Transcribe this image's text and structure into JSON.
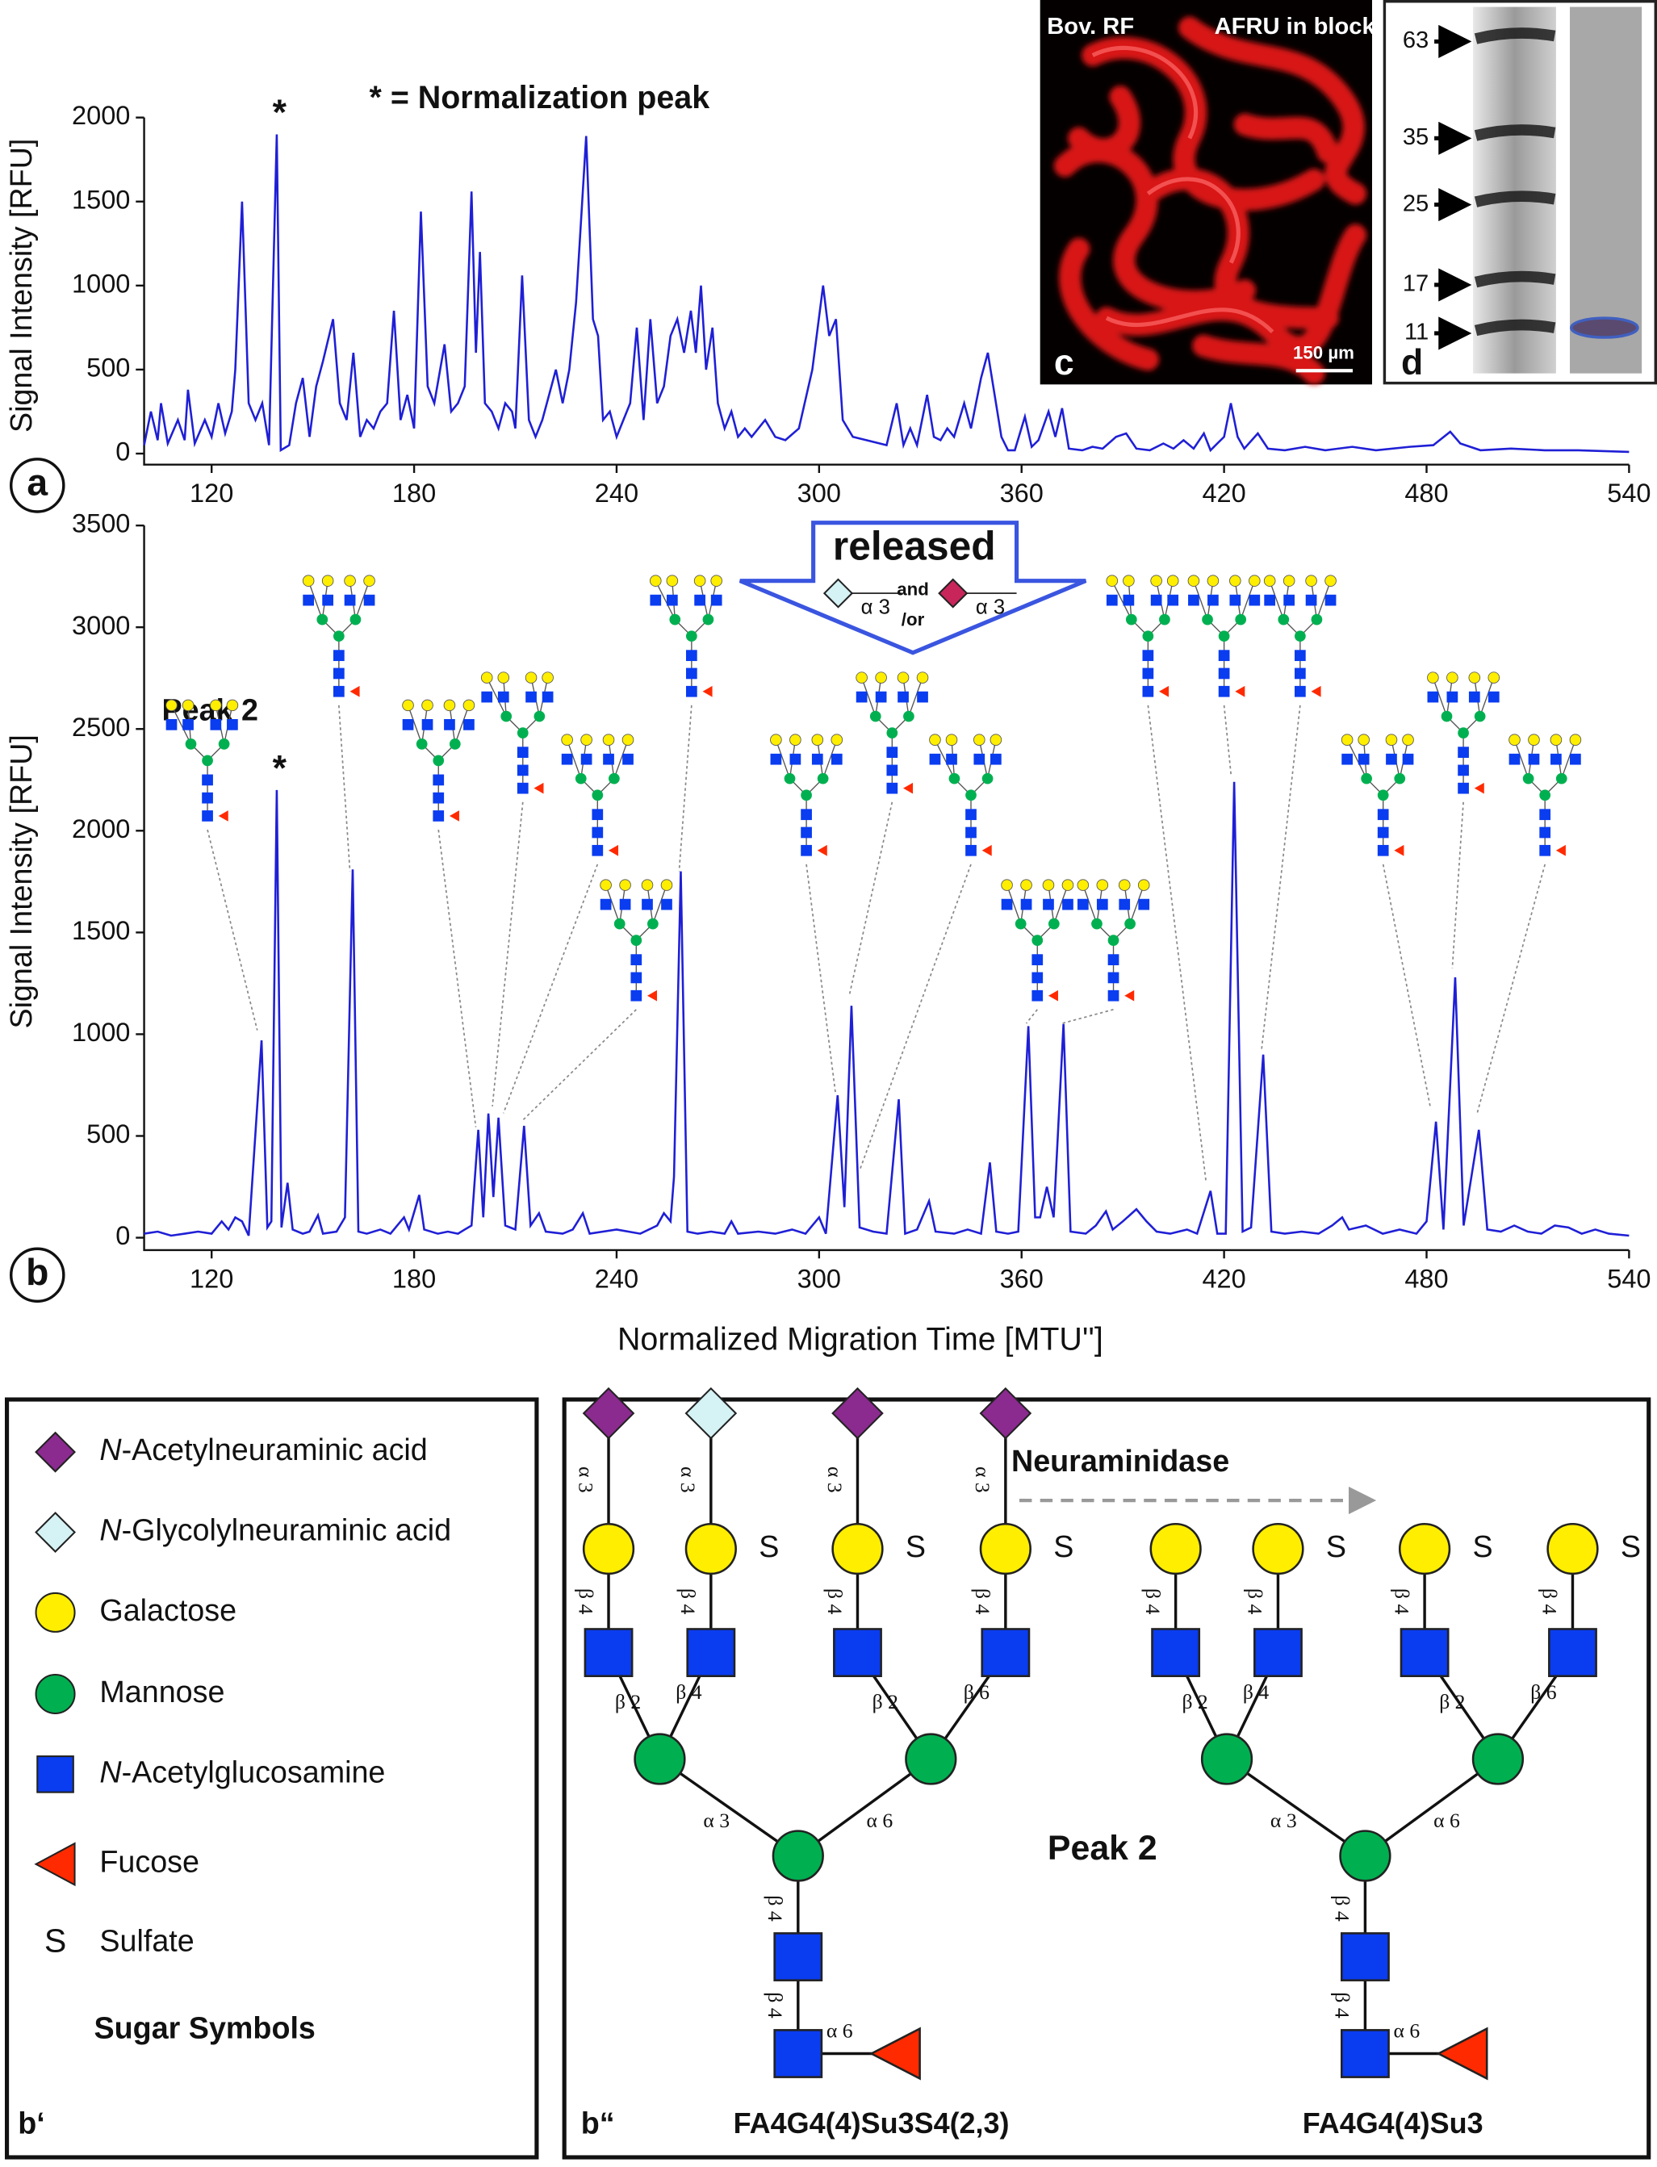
{
  "chart_data": [
    {
      "type": "line",
      "panel_label": "a",
      "annotation": "* = Normalization peak",
      "marker": "*",
      "y_label": "Signal Intensity [RFU]",
      "color": "#1f1fd6",
      "xlim": [
        100,
        540
      ],
      "xticks": [
        120,
        180,
        240,
        300,
        360,
        420,
        480,
        540
      ],
      "ylim": [
        0,
        2000
      ],
      "yticks": [
        0,
        500,
        1000,
        1500,
        2000
      ],
      "x": [
        100,
        102,
        104,
        105,
        107,
        110,
        112,
        113,
        115,
        118,
        120,
        122,
        124,
        126,
        127,
        129,
        131,
        133,
        135,
        137,
        139.3,
        140.5,
        143,
        145,
        147,
        149,
        151,
        153,
        156,
        158,
        160,
        162,
        164,
        166,
        168,
        170,
        172,
        174,
        176,
        178,
        180,
        182,
        184,
        186,
        189,
        191,
        193,
        195,
        197,
        198.3,
        199.5,
        201,
        203,
        205,
        207,
        209,
        210,
        212,
        214,
        216,
        218,
        220,
        222,
        224,
        226,
        228,
        231,
        233,
        234.5,
        236,
        238,
        240,
        242,
        244,
        246,
        248,
        250,
        252,
        254,
        256,
        258,
        260,
        262,
        263.5,
        265,
        266.5,
        268.4,
        270,
        272,
        274,
        276,
        278,
        280,
        284,
        287,
        290,
        294,
        298,
        301.2,
        303,
        305,
        307,
        310,
        314,
        318,
        320,
        323,
        325,
        327,
        329,
        332,
        334,
        336,
        338,
        340,
        343,
        345,
        348,
        350,
        352,
        354,
        356,
        358,
        361,
        363,
        365,
        368,
        370,
        372,
        374,
        378,
        381,
        384,
        388,
        391,
        394,
        398,
        402,
        405,
        408,
        411,
        414,
        416,
        418,
        420,
        422,
        424,
        426,
        430,
        433,
        438,
        444,
        450,
        458,
        465,
        475,
        482,
        487,
        490,
        496,
        505,
        515,
        525,
        540
      ],
      "values": [
        50,
        250,
        80,
        300,
        60,
        200,
        80,
        380,
        60,
        200,
        100,
        300,
        120,
        250,
        500,
        1500,
        300,
        200,
        300,
        50,
        1900,
        20,
        50,
        300,
        450,
        100,
        400,
        550,
        800,
        300,
        200,
        600,
        100,
        200,
        150,
        250,
        300,
        850,
        200,
        350,
        150,
        1440,
        400,
        300,
        650,
        250,
        300,
        400,
        1560,
        600,
        1200,
        300,
        250,
        150,
        300,
        250,
        150,
        1060,
        200,
        100,
        200,
        350,
        500,
        300,
        500,
        900,
        1890,
        800,
        700,
        200,
        250,
        100,
        200,
        300,
        750,
        200,
        800,
        300,
        400,
        700,
        800,
        600,
        850,
        600,
        1000,
        500,
        750,
        300,
        150,
        250,
        100,
        150,
        100,
        200,
        100,
        80,
        150,
        500,
        1000,
        700,
        800,
        200,
        100,
        80,
        60,
        50,
        300,
        50,
        150,
        50,
        350,
        100,
        80,
        150,
        100,
        300,
        150,
        450,
        600,
        350,
        100,
        20,
        20,
        220,
        40,
        80,
        250,
        100,
        270,
        30,
        20,
        40,
        30,
        100,
        120,
        30,
        20,
        60,
        30,
        80,
        30,
        120,
        20,
        60,
        100,
        300,
        100,
        30,
        120,
        30,
        20,
        40,
        20,
        40,
        20,
        40,
        50,
        130,
        60,
        20,
        30,
        20,
        20,
        10
      ]
    },
    {
      "type": "line",
      "panel_label": "b",
      "peak_label": "Peak 2",
      "marker": "*",
      "y_label": "Signal Intensity [RFU]",
      "x_label": "Normalized Migration Time [MTU'']",
      "color": "#1f1fd6",
      "callout": {
        "text": "released",
        "and": "and",
        "or": "/or",
        "linkage": "α 3"
      },
      "xlim": [
        100,
        540
      ],
      "xticks": [
        120,
        180,
        240,
        300,
        360,
        420,
        480,
        540
      ],
      "ylim": [
        0,
        3500
      ],
      "yticks": [
        0,
        500,
        1000,
        1500,
        2000,
        2500,
        3000,
        3500
      ],
      "x": [
        100,
        104,
        108,
        112,
        116,
        120,
        123,
        125,
        127,
        129,
        131,
        134.8,
        136.5,
        137.7,
        139.3,
        140.7,
        142.5,
        144,
        147,
        149,
        151.5,
        153,
        157,
        159.5,
        161.8,
        163.5,
        166,
        170,
        173,
        177,
        178.5,
        181.5,
        183,
        187,
        190,
        193,
        195,
        197,
        199,
        200.5,
        202,
        203.5,
        205,
        207,
        210,
        212.6,
        214.5,
        217,
        219,
        224,
        227,
        230,
        232,
        240,
        247,
        252,
        254,
        256,
        257,
        259,
        261,
        264,
        268,
        272,
        274,
        276,
        282,
        287,
        292,
        296,
        300,
        302,
        305.5,
        307.5,
        309.6,
        312,
        316,
        320,
        323.6,
        325.5,
        329,
        332.6,
        334.5,
        340,
        344,
        348,
        350.6,
        352.5,
        356,
        359,
        362,
        364,
        365.5,
        367.5,
        369.5,
        372.4,
        374.5,
        379,
        382,
        385,
        387,
        390,
        394,
        397,
        400,
        404,
        409,
        412,
        416,
        418,
        420.5,
        423,
        425.5,
        428,
        431.6,
        434,
        438,
        443,
        448,
        452,
        455,
        457,
        462,
        467,
        472,
        477,
        480,
        482.8,
        485,
        488.5,
        491,
        495.5,
        498,
        502,
        506,
        510,
        514,
        518,
        522,
        526,
        530,
        534,
        540
      ],
      "values": [
        20,
        30,
        10,
        20,
        30,
        20,
        80,
        40,
        100,
        80,
        10,
        970,
        50,
        80,
        2200,
        50,
        270,
        40,
        20,
        30,
        110,
        20,
        30,
        100,
        1810,
        30,
        20,
        40,
        20,
        100,
        40,
        210,
        40,
        20,
        30,
        20,
        40,
        60,
        530,
        100,
        610,
        200,
        590,
        60,
        40,
        550,
        60,
        120,
        30,
        20,
        40,
        120,
        20,
        40,
        20,
        60,
        120,
        80,
        300,
        1800,
        30,
        20,
        30,
        20,
        80,
        20,
        30,
        20,
        40,
        20,
        100,
        20,
        700,
        150,
        1140,
        50,
        30,
        20,
        680,
        20,
        40,
        180,
        30,
        20,
        40,
        20,
        370,
        30,
        20,
        30,
        1040,
        100,
        100,
        250,
        100,
        1050,
        30,
        20,
        60,
        130,
        40,
        80,
        140,
        80,
        30,
        20,
        40,
        20,
        230,
        20,
        20,
        2240,
        30,
        50,
        900,
        30,
        20,
        30,
        20,
        60,
        100,
        40,
        60,
        20,
        40,
        20,
        80,
        570,
        40,
        1280,
        60,
        530,
        40,
        30,
        60,
        30,
        20,
        60,
        50,
        20,
        40,
        20,
        10
      ]
    }
  ],
  "legend": {
    "panel_label": "b‘",
    "title": "Sugar Symbols",
    "items": [
      {
        "italic": "N",
        "text": "-Acetylneuraminic acid"
      },
      {
        "italic": "N",
        "text": "-Glycolylneuraminic acid"
      },
      {
        "text": "Galactose"
      },
      {
        "text": "Mannose"
      },
      {
        "italic": "N",
        "text": "-Acetylglucosamine"
      },
      {
        "text": "Fucose"
      },
      {
        "symbol": "S",
        "text": "Sulfate"
      }
    ]
  },
  "structure_panel": {
    "panel_label": "b“",
    "enzyme": "Neuraminidase",
    "peak_label": "Peak 2",
    "structures": [
      {
        "name": "FA4G4(4)Su3S4(2,3)",
        "sialic_linkages": [
          "α 3",
          "α 3",
          "α 3",
          "α 3"
        ],
        "sulfates": [
          "S",
          "S",
          "S"
        ],
        "linkages": [
          "β 4",
          "β 4",
          "β 4",
          "β 4",
          "β 2",
          "β 4",
          "β 2",
          "β 6",
          "α 3",
          "α 6",
          "β 4",
          "β 4",
          "α 6"
        ]
      },
      {
        "name": "FA4G4(4)Su3",
        "sulfates": [
          "S",
          "S",
          "S"
        ],
        "linkages": [
          "β 4",
          "β 4",
          "β 4",
          "β 4",
          "β 2",
          "β 4",
          "β 2",
          "β 6",
          "α 3",
          "α 6",
          "β 4",
          "β 4",
          "α 6"
        ]
      }
    ]
  },
  "image_c": {
    "panel_label": "c",
    "labels": [
      "Bov. RF",
      "AFRU in block"
    ],
    "scale_bar": "150 µm"
  },
  "gel_d": {
    "panel_label": "d",
    "markers": [
      63,
      35,
      25,
      17,
      11
    ]
  }
}
